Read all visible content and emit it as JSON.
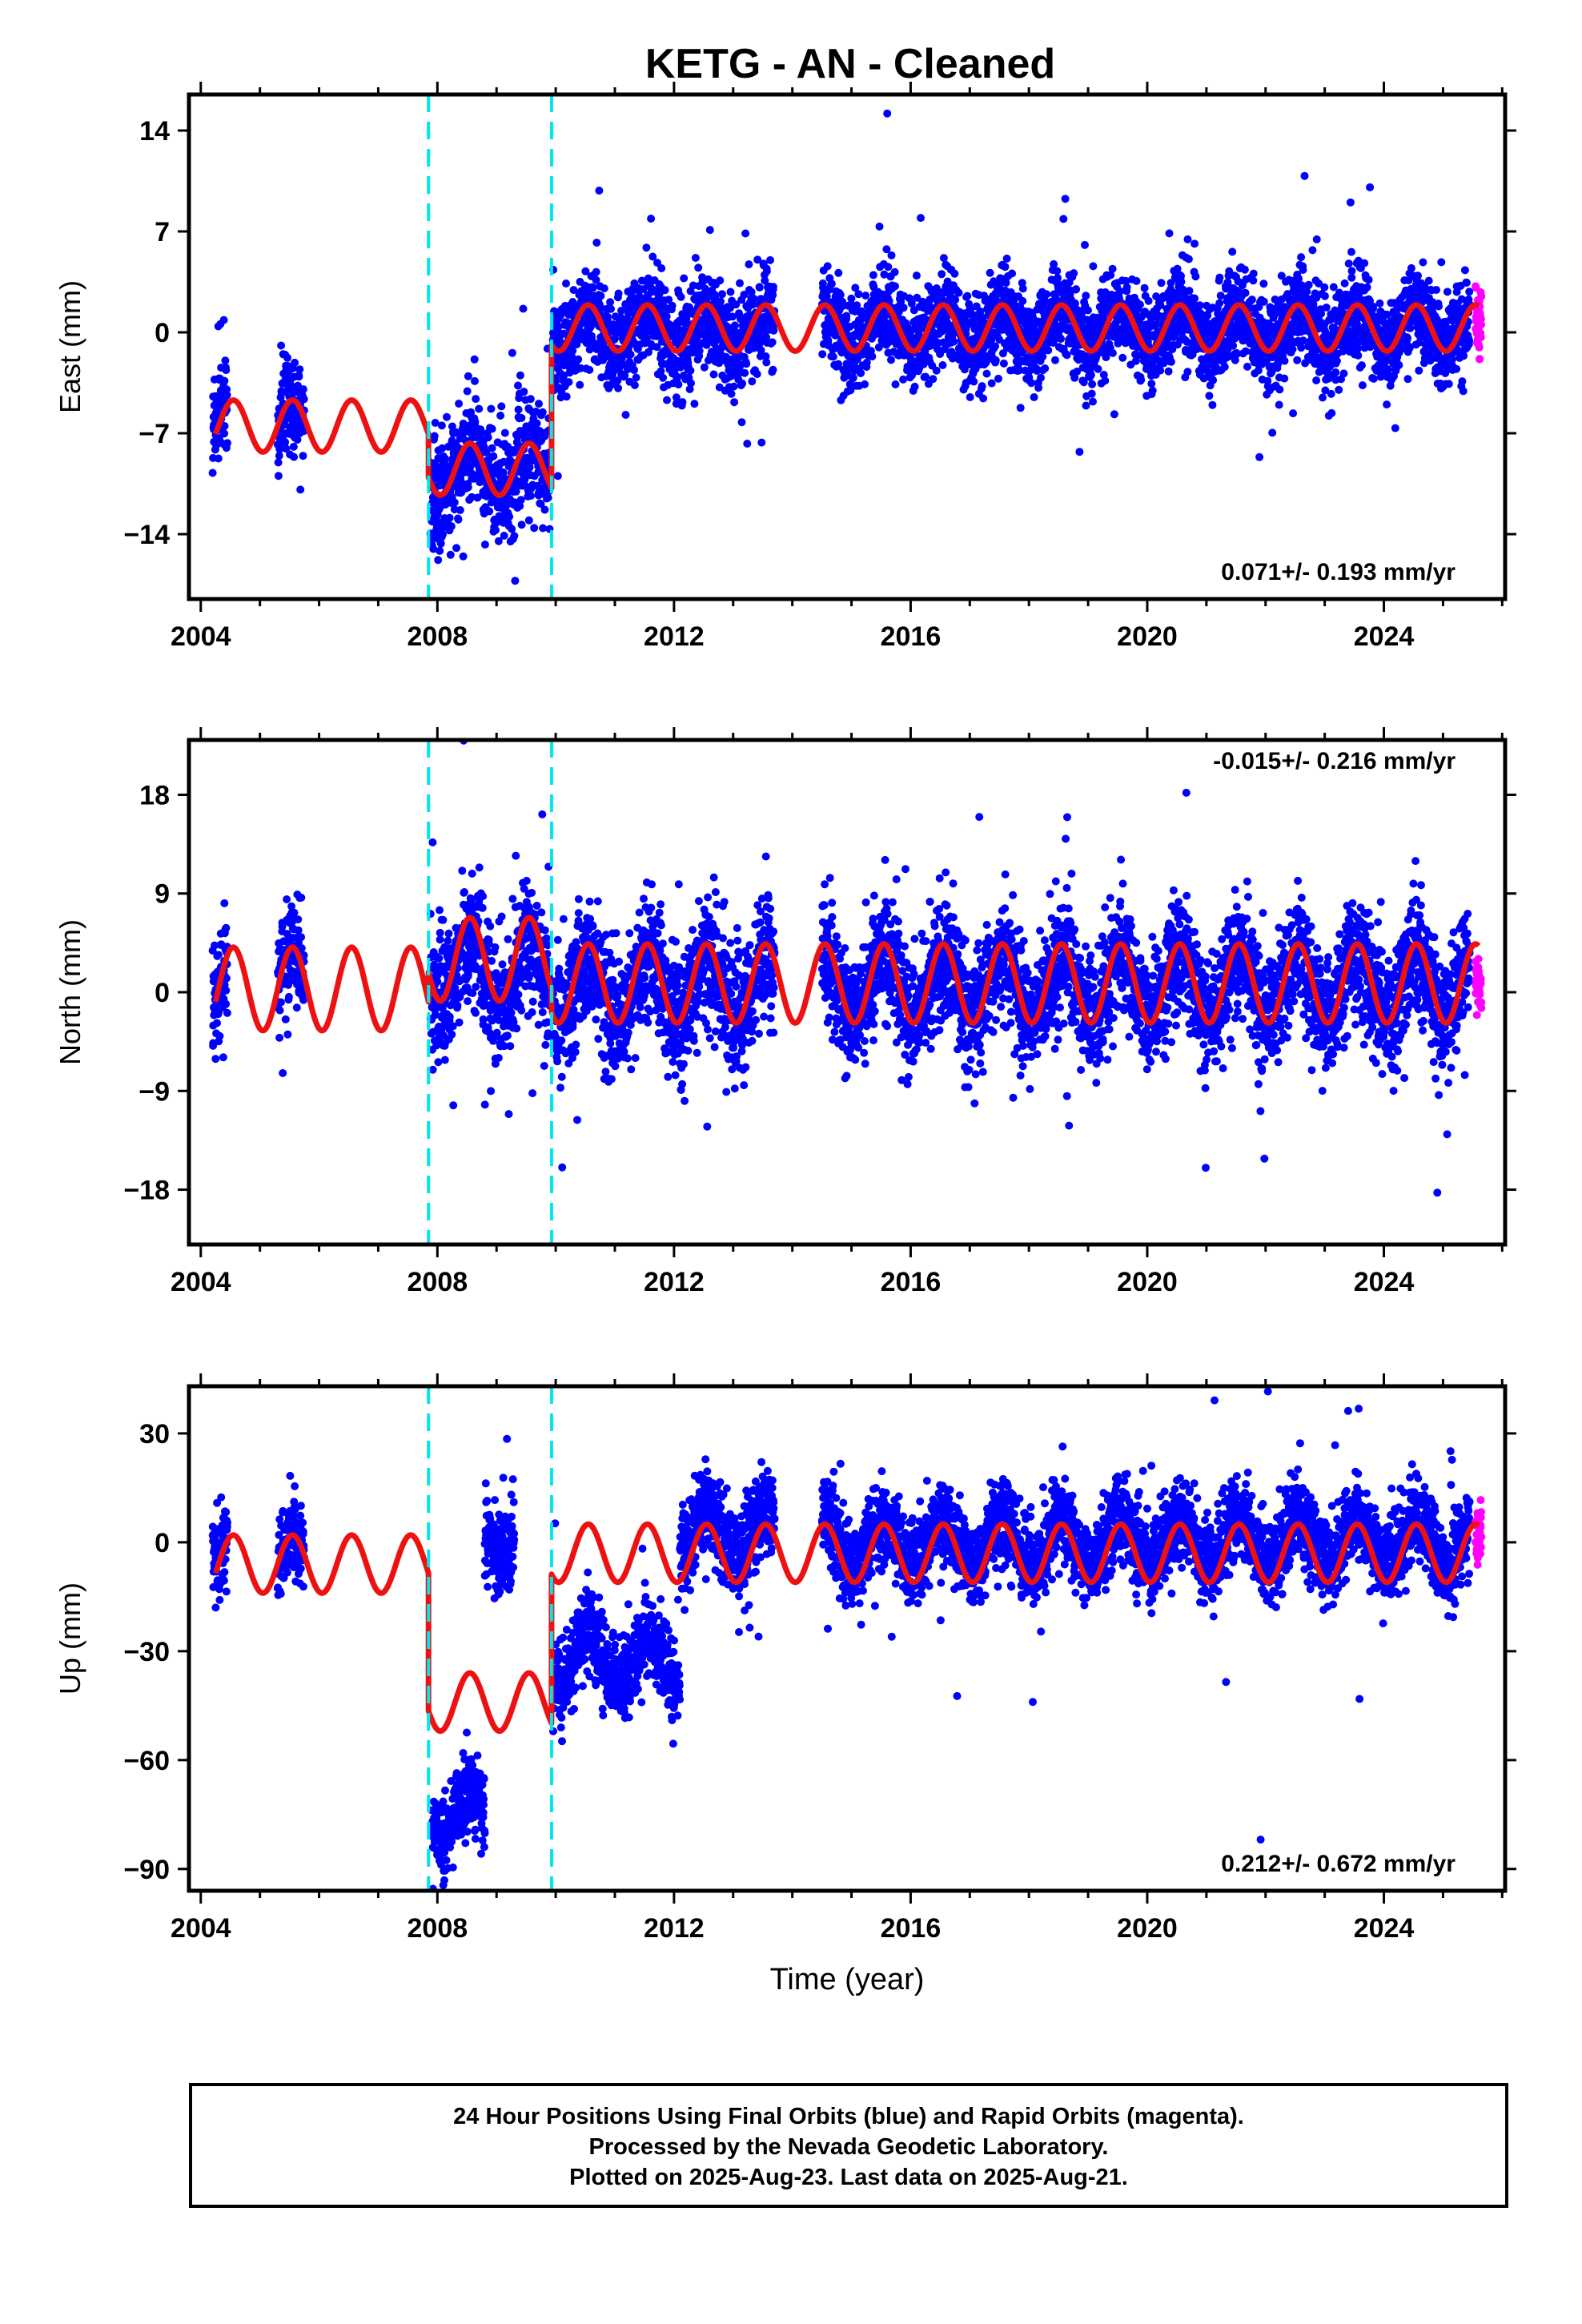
{
  "title": "KETG  - AN - Cleaned",
  "colors": {
    "final": "#0000ff",
    "rapid": "#ff00ff",
    "model": "#ee1111",
    "offsets": "#00e5ee"
  },
  "chart_data": [
    {
      "type": "scatter",
      "component": "East",
      "ylabel": "East (mm)",
      "xlabel": "",
      "xlim": [
        2003.8,
        2026.05
      ],
      "ylim": [
        -18.5,
        16.5
      ],
      "yticks": [
        14,
        7,
        0,
        -7,
        -14
      ],
      "ytick_labels": [
        "14",
        "7",
        "0",
        "−7",
        "−14"
      ],
      "xticks": [
        2004,
        2008,
        2012,
        2016,
        2020,
        2024
      ],
      "xtick_labels": [
        "2004",
        "2008",
        "2012",
        "2016",
        "2020",
        "2024"
      ],
      "offsets": [
        2007.85,
        2009.93
      ],
      "rate_text": "0.071+/- 0.193 mm/yr",
      "rate_position": "bottom-right",
      "model": {
        "segments": [
          {
            "x": [
              2004.25,
              2007.85
            ],
            "level": -6.5,
            "amplitude": 1.8
          },
          {
            "x": [
              2007.85,
              2009.93
            ],
            "level": -9.5,
            "amplitude": 1.8
          },
          {
            "x": [
              2009.93,
              2025.6
            ],
            "level": 0.3,
            "amplitude": 1.6
          }
        ]
      },
      "final_series": [
        {
          "x": [
            2004.2,
            2004.45
          ],
          "center": -5.5,
          "spread": 2.2
        },
        {
          "x": [
            2005.3,
            2005.75
          ],
          "center": -6.5,
          "spread": 2.5
        },
        {
          "x": [
            2007.88,
            2009.9
          ],
          "center": -9.5,
          "spread": 2.6
        },
        {
          "x": [
            2009.95,
            2013.7
          ],
          "center": 0.0,
          "spread": 2.5
        },
        {
          "x": [
            2014.5,
            2025.45
          ],
          "center": 0.3,
          "spread": 2.2
        }
      ],
      "rapid_series": {
        "x": [
          2025.55,
          2025.65
        ],
        "center": 0.5,
        "spread": 1.6
      }
    },
    {
      "type": "scatter",
      "component": "North",
      "ylabel": "North (mm)",
      "xlabel": "",
      "xlim": [
        2003.8,
        2026.05
      ],
      "ylim": [
        -23,
        23
      ],
      "yticks": [
        18,
        9,
        0,
        -9,
        -18
      ],
      "ytick_labels": [
        "18",
        "9",
        "0",
        "−9",
        "−18"
      ],
      "xticks": [
        2004,
        2008,
        2012,
        2016,
        2020,
        2024
      ],
      "xtick_labels": [
        "2004",
        "2008",
        "2012",
        "2016",
        "2020",
        "2024"
      ],
      "offsets": [
        2007.85,
        2009.93
      ],
      "rate_text": "-0.015+/- 0.216 mm/yr",
      "rate_position": "top-right",
      "model": {
        "segments": [
          {
            "x": [
              2004.25,
              2007.85
            ],
            "level": 0.3,
            "amplitude": 3.8
          },
          {
            "x": [
              2007.85,
              2009.93
            ],
            "level": 3.0,
            "amplitude": 3.8
          },
          {
            "x": [
              2009.93,
              2025.6
            ],
            "level": 0.8,
            "amplitude": 3.6
          }
        ]
      },
      "final_series": [
        {
          "x": [
            2004.2,
            2004.45
          ],
          "center": 0.0,
          "spread": 3.5
        },
        {
          "x": [
            2005.3,
            2005.75
          ],
          "center": 0.5,
          "spread": 3.5
        },
        {
          "x": [
            2007.88,
            2009.9
          ],
          "center": 2.0,
          "spread": 4.0
        },
        {
          "x": [
            2009.95,
            2013.7
          ],
          "center": 0.5,
          "spread": 4.0
        },
        {
          "x": [
            2014.5,
            2025.45
          ],
          "center": 0.5,
          "spread": 3.8
        }
      ],
      "rapid_series": {
        "x": [
          2025.55,
          2025.65
        ],
        "center": 1.0,
        "spread": 2.2
      }
    },
    {
      "type": "scatter",
      "component": "Up",
      "ylabel": "Up (mm)",
      "xlabel": "Time (year)",
      "xlim": [
        2003.8,
        2026.05
      ],
      "ylim": [
        -96,
        43
      ],
      "yticks": [
        30,
        0,
        -30,
        -60,
        -90
      ],
      "ytick_labels": [
        "30",
        "0",
        "−30",
        "−60",
        "−90"
      ],
      "xticks": [
        2004,
        2008,
        2012,
        2016,
        2020,
        2024
      ],
      "xtick_labels": [
        "2004",
        "2008",
        "2012",
        "2016",
        "2020",
        "2024"
      ],
      "offsets": [
        2007.85,
        2009.93
      ],
      "rate_text": "0.212+/- 0.672 mm/yr",
      "rate_position": "bottom-right",
      "model": {
        "segments": [
          {
            "x": [
              2004.25,
              2007.85
            ],
            "level": -6.0,
            "amplitude": 8.0
          },
          {
            "x": [
              2007.85,
              2009.93
            ],
            "level": -44.0,
            "amplitude": 8.0
          },
          {
            "x": [
              2009.93,
              2025.6
            ],
            "level": -3.0,
            "amplitude": 8.0
          }
        ]
      },
      "final_series": [
        {
          "x": [
            2004.2,
            2004.45
          ],
          "center": -3.0,
          "spread": 8.0
        },
        {
          "x": [
            2005.3,
            2005.75
          ],
          "center": -5.0,
          "spread": 8.0
        },
        {
          "x": [
            2007.9,
            2008.8
          ],
          "center": -75.0,
          "spread": 8.0
        },
        {
          "x": [
            2008.8,
            2009.3
          ],
          "center": 2.0,
          "spread": 10.0
        },
        {
          "x": [
            2009.95,
            2012.1
          ],
          "center": -32.0,
          "spread": 8.0
        },
        {
          "x": [
            2012.1,
            2013.7
          ],
          "center": 3.0,
          "spread": 9.0
        },
        {
          "x": [
            2014.5,
            2025.45
          ],
          "center": 0.0,
          "spread": 8.0
        }
      ],
      "rapid_series": {
        "x": [
          2025.55,
          2025.65
        ],
        "center": 2.0,
        "spread": 6.0
      }
    }
  ],
  "footer": {
    "line1": "24 Hour Positions Using Final Orbits (blue) and Rapid Orbits (magenta).",
    "line2": "Processed by the Nevada Geodetic Laboratory.",
    "line3": "Plotted on 2025-Aug-23. Last data on 2025-Aug-21."
  }
}
